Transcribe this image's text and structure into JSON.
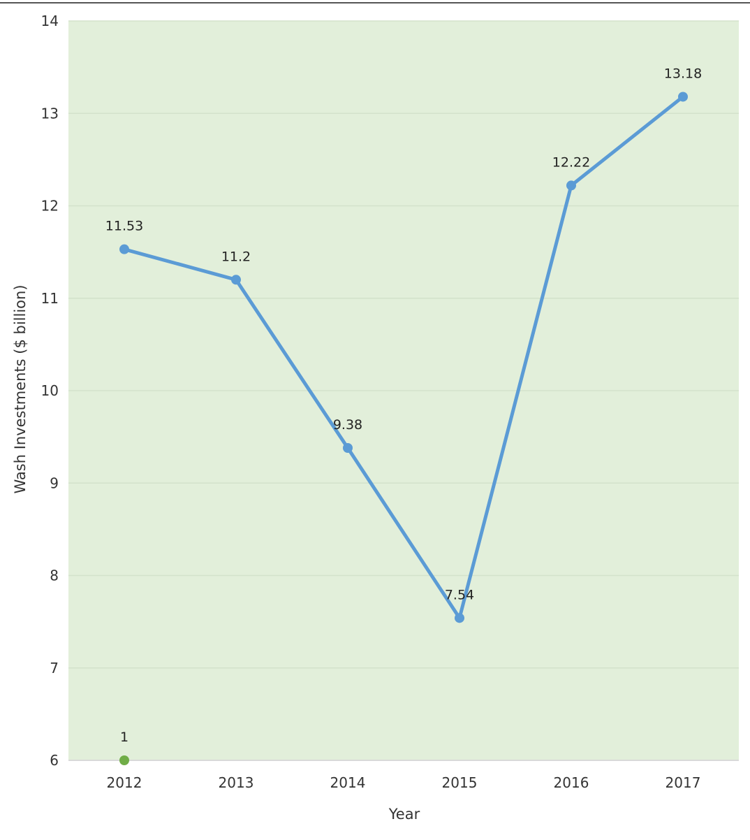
{
  "chart_data": {
    "type": "line",
    "title": "",
    "xlabel": "Year",
    "ylabel": "Wash Investments ($ billion)",
    "categories": [
      "2012",
      "2013",
      "2014",
      "2015",
      "2016",
      "2017"
    ],
    "ylim": [
      6,
      14
    ],
    "yticks": [
      6,
      7,
      8,
      9,
      10,
      11,
      12,
      13,
      14
    ],
    "grid": true,
    "legend": "none",
    "series": [
      {
        "color": "#5B9BD5",
        "values": [
          11.53,
          11.2,
          9.38,
          7.54,
          12.22,
          13.18
        ],
        "labels": [
          "11.53",
          "11.2",
          "9.38",
          "7.54",
          "12.22",
          "13.18"
        ]
      },
      {
        "color": "#70AD47",
        "x": [
          "2012"
        ],
        "values": [
          6
        ],
        "labels": [
          "1"
        ]
      }
    ],
    "plot_background": "#E2EFDA",
    "gridline_color": "#D3E2CB"
  }
}
